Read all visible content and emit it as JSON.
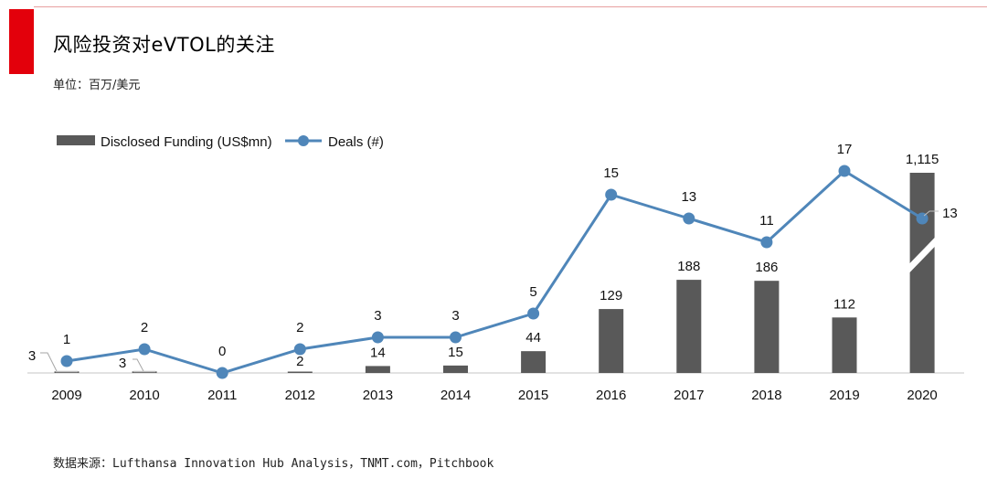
{
  "header": {
    "title": "风险投资对eVTOL的关注",
    "unit": "单位：百万/美元"
  },
  "footer": {
    "source": "数据来源：Lufthansa Innovation Hub Analysis，TNMT.com，Pitchbook"
  },
  "colors": {
    "accent": "#e3000b",
    "bar": "#595959",
    "line": "#4f86b9"
  },
  "chart_data": {
    "type": "bar+line",
    "categories": [
      "2009",
      "2010",
      "2011",
      "2012",
      "2013",
      "2014",
      "2015",
      "2016",
      "2017",
      "2018",
      "2019",
      "2020"
    ],
    "series": [
      {
        "name": "Disclosed Funding (US$mn)",
        "type": "bar",
        "values": [
          3,
          3,
          0,
          2,
          14,
          15,
          44,
          129,
          188,
          186,
          112,
          1115
        ],
        "labels": [
          "3",
          "3",
          "",
          "2",
          "14",
          "15",
          "44",
          "129",
          "188",
          "186",
          "112",
          "1,115"
        ],
        "axis_break": "2020"
      },
      {
        "name": "Deals (#)",
        "type": "line",
        "values": [
          1,
          2,
          0,
          2,
          3,
          3,
          5,
          15,
          13,
          11,
          17,
          13
        ],
        "labels": [
          "1",
          "2",
          "0",
          "2",
          "3",
          "3",
          "5",
          "15",
          "13",
          "11",
          "17",
          "13"
        ]
      }
    ],
    "legend_position": "top-left",
    "grid": false
  }
}
